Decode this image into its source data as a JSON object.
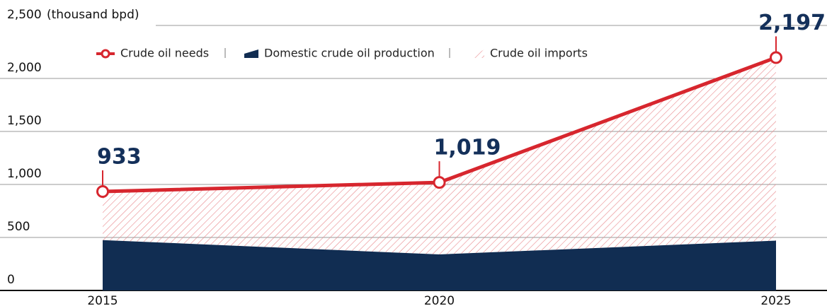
{
  "chart_data": {
    "type": "line",
    "y_label": "(thousand bpd)",
    "categories": [
      "2015",
      "2020",
      "2025"
    ],
    "series": [
      {
        "name": "Crude oil needs",
        "color": "#d7262e",
        "values": [
          933,
          1019,
          2197
        ],
        "value_labels": [
          "933",
          "1,019",
          "2,197"
        ]
      },
      {
        "name": "Domestic crude oil production",
        "color": "#112d52",
        "values": [
          475,
          340,
          470
        ]
      },
      {
        "name": "Crude oil imports",
        "color": "#e8878b",
        "values": [
          458,
          679,
          1727
        ]
      }
    ],
    "ylim": [
      0,
      2500
    ],
    "yticks": [
      0,
      500,
      {
        "value": 1000,
        "label": "1,000"
      },
      {
        "value": 1500,
        "label": "1,500"
      },
      {
        "value": 2000,
        "label": "2,000"
      },
      {
        "value": 2500,
        "label": "2,500"
      }
    ],
    "grid": true
  }
}
